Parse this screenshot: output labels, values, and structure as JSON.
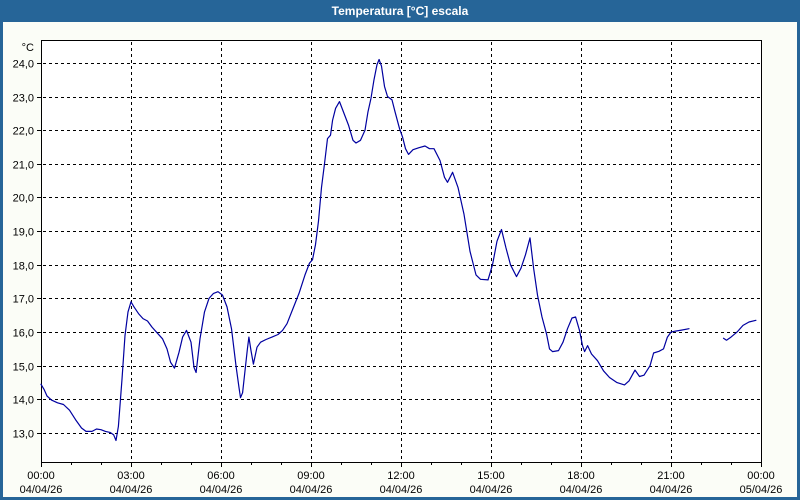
{
  "window": {
    "title": "Temperatura [°C] escala"
  },
  "colors": {
    "titlebar": "#266598",
    "title_text": "#ffffff",
    "border": "#266598",
    "background": "#fbfdf7",
    "plot_bg": "#ffffff",
    "grid": "#000000",
    "text": "#000000",
    "line": "#0000a0"
  },
  "chart_data": {
    "type": "line",
    "title": "Temperatura [°C] escala",
    "xlabel": "",
    "ylabel": "°C",
    "y_unit_label": "°C",
    "grid": true,
    "legend": false,
    "ylim": [
      12.14,
      24.68
    ],
    "xlim_hours": [
      0,
      24
    ],
    "x_minor_tick_every_hours": 1,
    "y_ticks": [
      {
        "value": 13,
        "label": "13,0"
      },
      {
        "value": 14,
        "label": "14,0"
      },
      {
        "value": 15,
        "label": "15,0"
      },
      {
        "value": 16,
        "label": "16,0"
      },
      {
        "value": 17,
        "label": "17,0"
      },
      {
        "value": 18,
        "label": "18,0"
      },
      {
        "value": 19,
        "label": "19,0"
      },
      {
        "value": 20,
        "label": "20,0"
      },
      {
        "value": 21,
        "label": "21,0"
      },
      {
        "value": 22,
        "label": "22,0"
      },
      {
        "value": 23,
        "label": "23,0"
      },
      {
        "value": 24,
        "label": "24,0"
      }
    ],
    "x_ticks": [
      {
        "hour": 0,
        "time": "00:00",
        "date": "04/04/26"
      },
      {
        "hour": 3,
        "time": "03:00",
        "date": "04/04/26"
      },
      {
        "hour": 6,
        "time": "06:00",
        "date": "04/04/26"
      },
      {
        "hour": 9,
        "time": "09:00",
        "date": "04/04/26"
      },
      {
        "hour": 12,
        "time": "12:00",
        "date": "04/04/26"
      },
      {
        "hour": 15,
        "time": "15:00",
        "date": "04/04/26"
      },
      {
        "hour": 18,
        "time": "18:00",
        "date": "04/04/26"
      },
      {
        "hour": 21,
        "time": "21:00",
        "date": "04/04/26"
      },
      {
        "hour": 24,
        "time": "00:00",
        "date": "05/04/26"
      }
    ],
    "series": [
      {
        "name": "Temperatura",
        "color": "#0000a0",
        "segments": [
          [
            [
              0,
              14.45
            ],
            [
              0.1,
              14.3
            ],
            [
              0.2,
              14.1
            ],
            [
              0.35,
              13.98
            ],
            [
              0.55,
              13.9
            ],
            [
              0.75,
              13.85
            ],
            [
              0.95,
              13.68
            ],
            [
              1.15,
              13.4
            ],
            [
              1.35,
              13.15
            ],
            [
              1.5,
              13.05
            ],
            [
              1.7,
              13.05
            ],
            [
              1.85,
              13.12
            ],
            [
              2.0,
              13.1
            ],
            [
              2.15,
              13.05
            ],
            [
              2.3,
              13.02
            ],
            [
              2.42,
              12.95
            ],
            [
              2.5,
              12.78
            ],
            [
              2.58,
              13.2
            ],
            [
              2.7,
              14.6
            ],
            [
              2.8,
              15.9
            ],
            [
              2.9,
              16.6
            ],
            [
              3.0,
              16.9
            ],
            [
              3.1,
              16.75
            ],
            [
              3.25,
              16.55
            ],
            [
              3.4,
              16.4
            ],
            [
              3.55,
              16.33
            ],
            [
              3.7,
              16.15
            ],
            [
              3.9,
              15.95
            ],
            [
              4.05,
              15.8
            ],
            [
              4.2,
              15.5
            ],
            [
              4.32,
              15.1
            ],
            [
              4.45,
              14.93
            ],
            [
              4.6,
              15.4
            ],
            [
              4.72,
              15.85
            ],
            [
              4.85,
              16.05
            ],
            [
              5.0,
              15.7
            ],
            [
              5.1,
              14.95
            ],
            [
              5.17,
              14.8
            ],
            [
              5.3,
              15.8
            ],
            [
              5.45,
              16.6
            ],
            [
              5.6,
              17.0
            ],
            [
              5.75,
              17.15
            ],
            [
              5.9,
              17.2
            ],
            [
              6.05,
              17.1
            ],
            [
              6.2,
              16.75
            ],
            [
              6.35,
              16.1
            ],
            [
              6.5,
              15.0
            ],
            [
              6.6,
              14.35
            ],
            [
              6.65,
              14.05
            ],
            [
              6.72,
              14.2
            ],
            [
              6.8,
              14.85
            ],
            [
              6.88,
              15.5
            ],
            [
              6.93,
              15.85
            ],
            [
              7.0,
              15.45
            ],
            [
              7.08,
              15.05
            ],
            [
              7.2,
              15.55
            ],
            [
              7.32,
              15.7
            ],
            [
              7.5,
              15.78
            ],
            [
              7.7,
              15.85
            ],
            [
              7.9,
              15.93
            ],
            [
              8.05,
              16.05
            ],
            [
              8.2,
              16.25
            ],
            [
              8.4,
              16.7
            ],
            [
              8.6,
              17.15
            ],
            [
              8.8,
              17.7
            ],
            [
              8.95,
              18.05
            ],
            [
              9.05,
              18.15
            ],
            [
              9.15,
              18.6
            ],
            [
              9.25,
              19.3
            ],
            [
              9.35,
              20.3
            ],
            [
              9.45,
              21.0
            ],
            [
              9.55,
              21.75
            ],
            [
              9.65,
              21.85
            ],
            [
              9.72,
              22.3
            ],
            [
              9.82,
              22.65
            ],
            [
              9.95,
              22.85
            ],
            [
              10.1,
              22.5
            ],
            [
              10.25,
              22.15
            ],
            [
              10.4,
              21.7
            ],
            [
              10.5,
              21.62
            ],
            [
              10.65,
              21.7
            ],
            [
              10.8,
              22.0
            ],
            [
              10.9,
              22.55
            ],
            [
              11.0,
              22.95
            ],
            [
              11.1,
              23.5
            ],
            [
              11.2,
              23.95
            ],
            [
              11.27,
              24.1
            ],
            [
              11.35,
              23.9
            ],
            [
              11.45,
              23.3
            ],
            [
              11.55,
              23.0
            ],
            [
              11.7,
              22.9
            ],
            [
              11.8,
              22.55
            ],
            [
              11.95,
              22.05
            ],
            [
              12.05,
              21.8
            ],
            [
              12.15,
              21.45
            ],
            [
              12.25,
              21.28
            ],
            [
              12.4,
              21.42
            ],
            [
              12.6,
              21.48
            ],
            [
              12.8,
              21.53
            ],
            [
              12.95,
              21.45
            ],
            [
              13.1,
              21.45
            ],
            [
              13.3,
              21.1
            ],
            [
              13.45,
              20.6
            ],
            [
              13.55,
              20.45
            ],
            [
              13.72,
              20.75
            ],
            [
              13.9,
              20.3
            ],
            [
              14.1,
              19.5
            ],
            [
              14.3,
              18.4
            ],
            [
              14.5,
              17.7
            ],
            [
              14.65,
              17.57
            ],
            [
              14.9,
              17.55
            ],
            [
              15.05,
              18.0
            ],
            [
              15.2,
              18.7
            ],
            [
              15.35,
              19.05
            ],
            [
              15.5,
              18.5
            ],
            [
              15.65,
              18.0
            ],
            [
              15.85,
              17.65
            ],
            [
              16.0,
              17.9
            ],
            [
              16.15,
              18.3
            ],
            [
              16.3,
              18.8
            ],
            [
              16.42,
              17.9
            ],
            [
              16.55,
              17.1
            ],
            [
              16.7,
              16.45
            ],
            [
              16.85,
              15.95
            ],
            [
              16.95,
              15.5
            ],
            [
              17.05,
              15.42
            ],
            [
              17.25,
              15.45
            ],
            [
              17.4,
              15.7
            ],
            [
              17.55,
              16.1
            ],
            [
              17.7,
              16.42
            ],
            [
              17.82,
              16.45
            ],
            [
              17.95,
              16.05
            ],
            [
              18.05,
              15.6
            ],
            [
              18.12,
              15.42
            ],
            [
              18.22,
              15.6
            ],
            [
              18.35,
              15.35
            ],
            [
              18.55,
              15.15
            ],
            [
              18.75,
              14.85
            ],
            [
              18.95,
              14.65
            ],
            [
              19.2,
              14.5
            ],
            [
              19.45,
              14.43
            ],
            [
              19.6,
              14.55
            ],
            [
              19.8,
              14.87
            ],
            [
              19.95,
              14.68
            ],
            [
              20.1,
              14.72
            ],
            [
              20.3,
              15.0
            ],
            [
              20.42,
              15.38
            ],
            [
              20.6,
              15.43
            ],
            [
              20.75,
              15.5
            ],
            [
              20.88,
              15.85
            ],
            [
              21.0,
              16.0
            ],
            [
              21.15,
              16.03
            ],
            [
              21.35,
              16.06
            ],
            [
              21.6,
              16.1
            ]
          ],
          [
            [
              22.75,
              15.82
            ],
            [
              22.85,
              15.76
            ],
            [
              23.0,
              15.85
            ],
            [
              23.2,
              16.0
            ],
            [
              23.4,
              16.2
            ],
            [
              23.6,
              16.3
            ],
            [
              23.83,
              16.35
            ]
          ]
        ]
      }
    ]
  }
}
